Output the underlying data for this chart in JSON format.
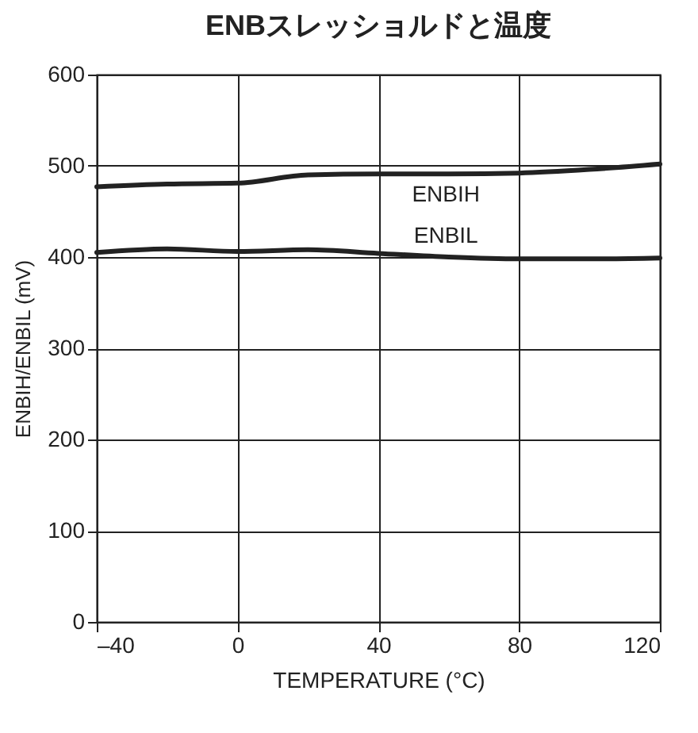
{
  "chart_data": {
    "type": "line",
    "title": "ENBスレッショルドと温度",
    "xlabel": "TEMPERATURE (°C)",
    "ylabel": "ENBIH/ENBIL (mV)",
    "x": [
      -40,
      -20,
      0,
      20,
      40,
      60,
      80,
      100,
      120
    ],
    "series": [
      {
        "name": "ENBIH",
        "color": "#222222",
        "values": [
          477,
          480,
          481,
          490,
          491,
          491,
          492,
          496,
          502
        ]
      },
      {
        "name": "ENBIL",
        "color": "#222222",
        "values": [
          405,
          409,
          406,
          408,
          404,
          400,
          398,
          398,
          399
        ]
      }
    ],
    "xlim": [
      -40,
      120
    ],
    "xticks": [
      {
        "value": -40,
        "label": "–40"
      },
      0,
      40,
      80,
      120
    ],
    "ylim": [
      0,
      600
    ],
    "yticks": [
      0,
      100,
      200,
      300,
      400,
      500,
      600
    ],
    "grid": true,
    "legend": false,
    "marker": "none",
    "line_style": "solid"
  }
}
